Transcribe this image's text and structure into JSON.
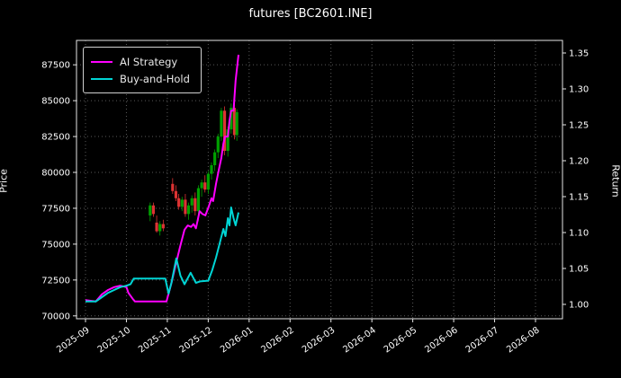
{
  "title": "futures [BC2601.INE]",
  "chart_data": {
    "type": "line",
    "title": "futures [BC2601.INE]",
    "grid": true,
    "legend_position": "upper-left",
    "x_tick_labels": [
      "2025-09",
      "2025-10",
      "2025-11",
      "2025-12",
      "2026-01",
      "2026-02",
      "2026-03",
      "2026-04",
      "2026-05",
      "2026-06",
      "2026-07",
      "2026-08"
    ],
    "x_range": [
      -0.22,
      11.66
    ],
    "left_axis": {
      "label": "Price",
      "ticks": [
        70000,
        72500,
        75000,
        77500,
        80000,
        82500,
        85000,
        87500
      ],
      "range": [
        69800,
        89200
      ]
    },
    "right_axis": {
      "label": "Return",
      "ticks": [
        1.0,
        1.05,
        1.1,
        1.15,
        1.2,
        1.25,
        1.3,
        1.35
      ],
      "range": [
        0.98,
        1.3675
      ]
    },
    "series": [
      {
        "name": "AI Strategy",
        "color": "#ff00ff",
        "axis": "left",
        "x": [
          0.0,
          0.25,
          0.4,
          0.55,
          0.7,
          0.85,
          1.0,
          1.05,
          1.15,
          1.21,
          1.98,
          2.1,
          2.2,
          2.31,
          2.42,
          2.5,
          2.58,
          2.64,
          2.7,
          2.79,
          2.86,
          2.93,
          3.01,
          3.08,
          3.12,
          3.19,
          3.26,
          3.32,
          3.37,
          3.41,
          3.48,
          3.52,
          3.56,
          3.62,
          3.67,
          3.74
        ],
        "y": [
          71100,
          71000,
          71500,
          71800,
          72000,
          72100,
          72000,
          71600,
          71200,
          71000,
          71000,
          72300,
          73500,
          74800,
          76000,
          76300,
          76200,
          76400,
          76100,
          77300,
          77100,
          77000,
          77600,
          78200,
          78000,
          79200,
          80200,
          81000,
          82000,
          82500,
          82500,
          83600,
          84300,
          84300,
          86400,
          88200
        ]
      },
      {
        "name": "Buy-and-Hold",
        "color": "#00d5d5",
        "axis": "right",
        "x": [
          0.0,
          0.25,
          0.4,
          0.55,
          0.7,
          0.85,
          1.0,
          1.1,
          1.18,
          1.95,
          2.03,
          2.1,
          2.22,
          2.32,
          2.42,
          2.57,
          2.7,
          2.8,
          3.0,
          3.1,
          3.19,
          3.28,
          3.37,
          3.42,
          3.48,
          3.52,
          3.56,
          3.62,
          3.67,
          3.74
        ],
        "y": [
          1.004,
          1.004,
          1.01,
          1.016,
          1.02,
          1.024,
          1.026,
          1.028,
          1.036,
          1.036,
          1.015,
          1.03,
          1.064,
          1.04,
          1.028,
          1.044,
          1.03,
          1.032,
          1.033,
          1.048,
          1.065,
          1.085,
          1.105,
          1.095,
          1.12,
          1.11,
          1.135,
          1.12,
          1.11,
          1.128
        ]
      }
    ],
    "candles": {
      "axis": "left",
      "up_color": "#00a000",
      "down_color": "#dd3333",
      "columns": [
        "x",
        "open",
        "high",
        "low",
        "close"
      ],
      "data": [
        [
          1.58,
          77000,
          77900,
          76600,
          77700
        ],
        [
          1.66,
          77700,
          77900,
          76900,
          77100
        ],
        [
          1.74,
          76500,
          77000,
          75800,
          75900
        ],
        [
          1.82,
          75900,
          76600,
          75600,
          76400
        ],
        [
          1.9,
          76400,
          76700,
          75900,
          76100
        ],
        [
          2.13,
          79200,
          79600,
          78500,
          78700
        ],
        [
          2.21,
          78700,
          79100,
          78000,
          78200
        ],
        [
          2.28,
          78200,
          78500,
          77400,
          77600
        ],
        [
          2.36,
          77600,
          78300,
          77300,
          78100
        ],
        [
          2.44,
          78100,
          78500,
          76900,
          77100
        ],
        [
          2.52,
          77100,
          77900,
          76700,
          77700
        ],
        [
          2.6,
          77700,
          78400,
          77200,
          78200
        ],
        [
          2.68,
          78200,
          78600,
          77000,
          77300
        ],
        [
          2.76,
          77300,
          79100,
          76600,
          78900
        ],
        [
          2.84,
          78900,
          79500,
          78300,
          79300
        ],
        [
          2.92,
          79300,
          79800,
          78600,
          78800
        ],
        [
          3.0,
          78800,
          80100,
          78500,
          79900
        ],
        [
          3.08,
          79900,
          80700,
          79500,
          80500
        ],
        [
          3.16,
          80500,
          81600,
          80100,
          81400
        ],
        [
          3.24,
          81400,
          82700,
          81000,
          82500
        ],
        [
          3.32,
          82500,
          84500,
          82200,
          84300
        ],
        [
          3.4,
          84300,
          84600,
          81200,
          81500
        ],
        [
          3.48,
          81500,
          83200,
          81100,
          83000
        ],
        [
          3.56,
          83000,
          84800,
          82700,
          84500
        ],
        [
          3.64,
          84500,
          84700,
          82300,
          82600
        ],
        [
          3.7,
          82600,
          84400,
          82200,
          84200
        ]
      ]
    }
  }
}
